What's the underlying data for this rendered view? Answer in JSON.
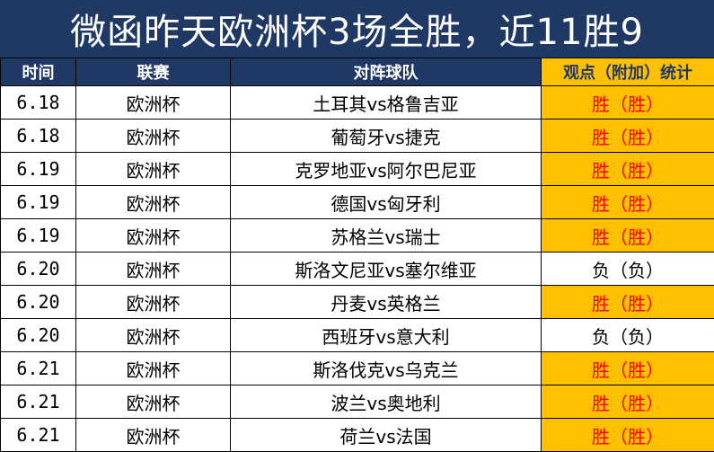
{
  "title": "微函昨天欧洲杯3场全胜，近11胜9",
  "headers": {
    "date": "时间",
    "league": "联赛",
    "match": "对阵球队",
    "result": "观点（附加）统计"
  },
  "colors": {
    "header_bg": "#1f3864",
    "win_bg": "#ffc000",
    "win_text": "#ff0000"
  },
  "rows": [
    {
      "date": "6.18",
      "league": "欧洲杯",
      "match": "土耳其vs格鲁吉亚",
      "result": "胜（胜）",
      "win": true
    },
    {
      "date": "6.18",
      "league": "欧洲杯",
      "match": "葡萄牙vs捷克",
      "result": "胜（胜）",
      "win": true
    },
    {
      "date": "6.19",
      "league": "欧洲杯",
      "match": "克罗地亚vs阿尔巴尼亚",
      "result": "胜（胜）",
      "win": true
    },
    {
      "date": "6.19",
      "league": "欧洲杯",
      "match": "德国vs匈牙利",
      "result": "胜（胜）",
      "win": true
    },
    {
      "date": "6.19",
      "league": "欧洲杯",
      "match": "苏格兰vs瑞士",
      "result": "胜（胜）",
      "win": true
    },
    {
      "date": "6.20",
      "league": "欧洲杯",
      "match": "斯洛文尼亚vs塞尔维亚",
      "result": "负（负）",
      "win": false
    },
    {
      "date": "6.20",
      "league": "欧洲杯",
      "match": "丹麦vs英格兰",
      "result": "胜（胜）",
      "win": true
    },
    {
      "date": "6.20",
      "league": "欧洲杯",
      "match": "西班牙vs意大利",
      "result": "负（负）",
      "win": false
    },
    {
      "date": "6.21",
      "league": "欧洲杯",
      "match": "斯洛伐克vs乌克兰",
      "result": "胜（胜）",
      "win": true
    },
    {
      "date": "6.21",
      "league": "欧洲杯",
      "match": "波兰vs奥地利",
      "result": "胜（胜）",
      "win": true
    },
    {
      "date": "6.21",
      "league": "欧洲杯",
      "match": "荷兰vs法国",
      "result": "胜（胜）",
      "win": true
    }
  ]
}
